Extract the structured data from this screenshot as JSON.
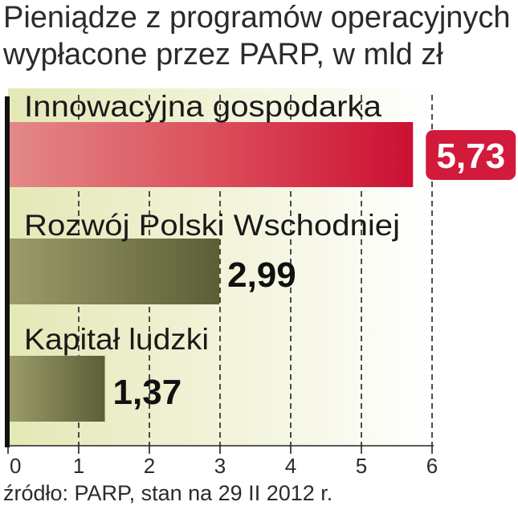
{
  "title_line1": "Pieniądze z programów operacyjnych",
  "title_line2": "wypłacone przez PARP, w mld zł",
  "source": "źródło: PARP, stan na 29 II 2012 r.",
  "colors": {
    "innowacyjna": "#d21a3a",
    "green": "#6f7045",
    "background_band": "#f1f3d6",
    "value_badge": "#d21a3a"
  },
  "chart_data": {
    "type": "bar",
    "orientation": "horizontal",
    "categories": [
      "Innowacyjna gospodarka",
      "Rozwój Polski Wschodniej",
      "Kapitał ludzki"
    ],
    "values": [
      5.73,
      2.99,
      1.37
    ],
    "value_labels": [
      "5,73",
      "2,99",
      "1,37"
    ],
    "xlim": [
      0,
      6
    ],
    "x_ticks": [
      "0",
      "1",
      "2",
      "3",
      "4",
      "5",
      "6"
    ],
    "grid": true,
    "highlight_category": "Innowacyjna gospodarka"
  }
}
